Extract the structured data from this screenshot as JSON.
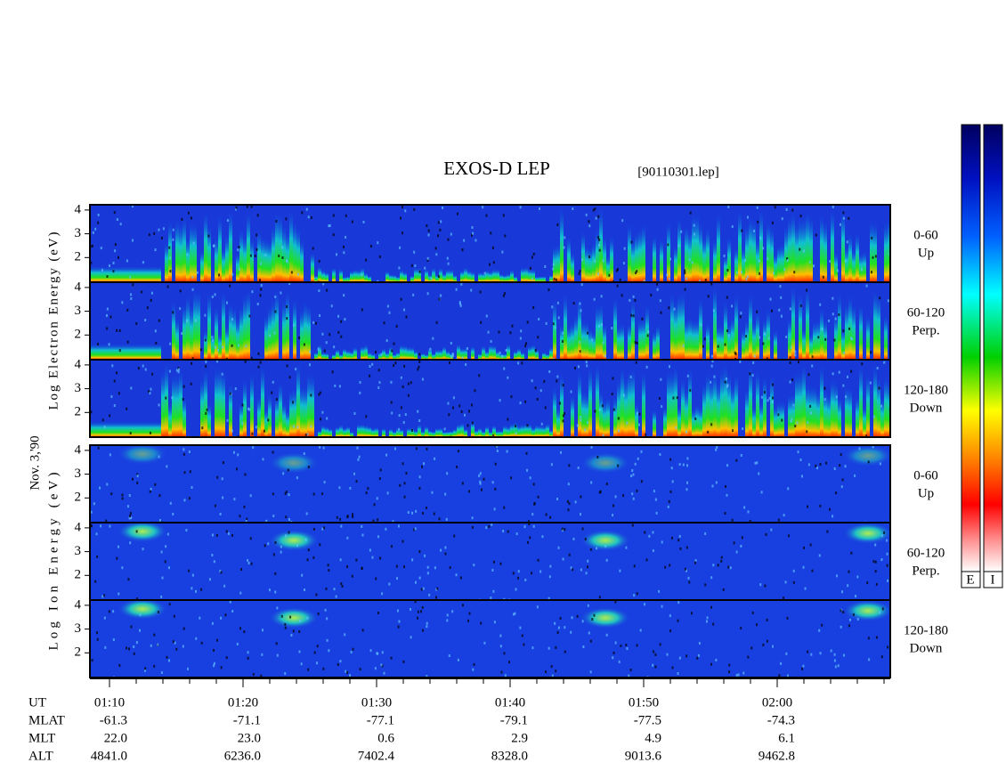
{
  "header": {
    "title": "EXOS-D LEP",
    "file": "[90110301.lep]"
  },
  "date": "Nov. 3,'90",
  "electron": {
    "axis_label": "Log Electron Energy (eV)",
    "yticks": [
      2,
      3,
      4
    ],
    "panels": [
      {
        "range": "0-60",
        "direction": "Up"
      },
      {
        "range": "60-120",
        "direction": "Perp."
      },
      {
        "range": "120-180",
        "direction": "Down"
      }
    ]
  },
  "ion": {
    "axis_label": "Log Ion Energy (eV)",
    "yticks": [
      2,
      3,
      4
    ],
    "panels": [
      {
        "range": "0-60",
        "direction": "Up"
      },
      {
        "range": "60-120",
        "direction": "Perp."
      },
      {
        "range": "120-180",
        "direction": "Down"
      }
    ]
  },
  "colorbar_labels": [
    "E",
    "I"
  ],
  "time_axis": {
    "rows": [
      {
        "label": "UT",
        "values": [
          "01:10",
          "01:20",
          "01:30",
          "01:40",
          "01:50",
          "02:00"
        ]
      },
      {
        "label": "MLAT",
        "values": [
          "-61.3",
          "-71.1",
          "-77.1",
          "-79.1",
          "-77.5",
          "-74.3"
        ]
      },
      {
        "label": "MLT",
        "values": [
          "22.0",
          "23.0",
          "0.6",
          "2.9",
          "4.9",
          "6.1"
        ]
      },
      {
        "label": "ALT",
        "values": [
          "4841.0",
          "6236.0",
          "7402.4",
          "8328.0",
          "9013.6",
          "9462.8"
        ]
      }
    ]
  }
}
